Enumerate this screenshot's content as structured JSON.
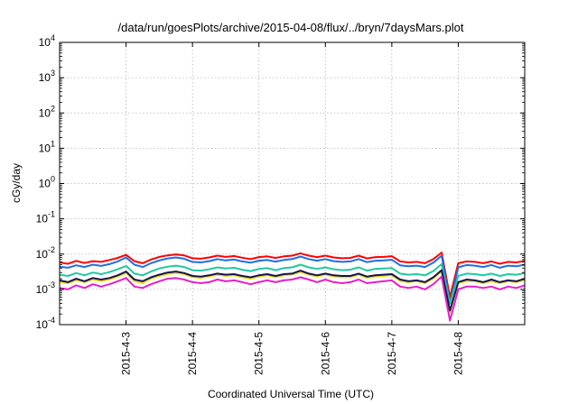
{
  "chart_data": {
    "type": "line",
    "title": "/data/run/goesPlots/archive/2015-04-08/flux/../bryn/7daysMars.plot",
    "xlabel": "Coordinated Universal Time (UTC)",
    "ylabel": "cGy/day",
    "yscale": "log",
    "ylim": [
      0.0001,
      10000
    ],
    "xlim": [
      "2015-04-02T00:00",
      "2015-04-09T00:00"
    ],
    "y_ticks": [
      {
        "value": 0.0001,
        "mant": "10",
        "exp": "-4"
      },
      {
        "value": 0.001,
        "mant": "10",
        "exp": "-3"
      },
      {
        "value": 0.01,
        "mant": "10",
        "exp": "-2"
      },
      {
        "value": 0.1,
        "mant": "10",
        "exp": "-1"
      },
      {
        "value": 1,
        "mant": "10",
        "exp": "0"
      },
      {
        "value": 10,
        "mant": "10",
        "exp": "1"
      },
      {
        "value": 100,
        "mant": "10",
        "exp": "2"
      },
      {
        "value": 1000,
        "mant": "10",
        "exp": "3"
      },
      {
        "value": 10000,
        "mant": "10",
        "exp": "4"
      }
    ],
    "x_ticks": [
      {
        "value": "2015-04-03T00:00",
        "label": "2015-4-3"
      },
      {
        "value": "2015-04-04T00:00",
        "label": "2015-4-4"
      },
      {
        "value": "2015-04-05T00:00",
        "label": "2015-4-5"
      },
      {
        "value": "2015-04-06T00:00",
        "label": "2015-4-6"
      },
      {
        "value": "2015-04-07T00:00",
        "label": "2015-4-7"
      },
      {
        "value": "2015-04-08T00:00",
        "label": "2015-4-8"
      }
    ],
    "grid": true,
    "x": [
      "2015-04-02T00:00",
      "2015-04-02T03:00",
      "2015-04-02T06:00",
      "2015-04-02T09:00",
      "2015-04-02T12:00",
      "2015-04-02T15:00",
      "2015-04-02T18:00",
      "2015-04-02T21:00",
      "2015-04-03T00:00",
      "2015-04-03T03:00",
      "2015-04-03T06:00",
      "2015-04-03T09:00",
      "2015-04-03T12:00",
      "2015-04-03T15:00",
      "2015-04-03T18:00",
      "2015-04-03T21:00",
      "2015-04-04T00:00",
      "2015-04-04T03:00",
      "2015-04-04T06:00",
      "2015-04-04T09:00",
      "2015-04-04T12:00",
      "2015-04-04T15:00",
      "2015-04-04T18:00",
      "2015-04-04T21:00",
      "2015-04-05T00:00",
      "2015-04-05T03:00",
      "2015-04-05T06:00",
      "2015-04-05T09:00",
      "2015-04-05T12:00",
      "2015-04-05T15:00",
      "2015-04-05T18:00",
      "2015-04-05T21:00",
      "2015-04-06T00:00",
      "2015-04-06T03:00",
      "2015-04-06T06:00",
      "2015-04-06T09:00",
      "2015-04-06T12:00",
      "2015-04-06T15:00",
      "2015-04-06T18:00",
      "2015-04-06T21:00",
      "2015-04-07T00:00",
      "2015-04-07T03:00",
      "2015-04-07T06:00",
      "2015-04-07T09:00",
      "2015-04-07T12:00",
      "2015-04-07T15:00",
      "2015-04-07T18:00",
      "2015-04-07T21:00",
      "2015-04-08T00:00",
      "2015-04-08T03:00",
      "2015-04-08T06:00",
      "2015-04-08T09:00",
      "2015-04-08T12:00",
      "2015-04-08T15:00",
      "2015-04-08T18:00",
      "2015-04-08T21:00",
      "2015-04-09T00:00"
    ],
    "series": [
      {
        "color": "#ff0000",
        "values": [
          0.0058,
          0.0053,
          0.0064,
          0.0056,
          0.0063,
          0.006,
          0.0068,
          0.0078,
          0.0095,
          0.0063,
          0.0055,
          0.007,
          0.0083,
          0.0092,
          0.0098,
          0.0092,
          0.0076,
          0.0074,
          0.008,
          0.009,
          0.0083,
          0.0088,
          0.0079,
          0.0072,
          0.0082,
          0.0086,
          0.0078,
          0.0086,
          0.009,
          0.0105,
          0.009,
          0.0082,
          0.009,
          0.008,
          0.0076,
          0.0078,
          0.009,
          0.0075,
          0.0082,
          0.0083,
          0.0087,
          0.0062,
          0.0058,
          0.006,
          0.0055,
          0.0072,
          0.011,
          0.0006,
          0.0055,
          0.0062,
          0.006,
          0.0055,
          0.0062,
          0.0053,
          0.006,
          0.0058,
          0.0064
        ]
      },
      {
        "color": "#1e6ee6",
        "values": [
          0.0044,
          0.0041,
          0.0048,
          0.0043,
          0.005,
          0.0046,
          0.0052,
          0.0062,
          0.008,
          0.005,
          0.0043,
          0.0055,
          0.0066,
          0.0075,
          0.008,
          0.0074,
          0.006,
          0.0058,
          0.0063,
          0.0072,
          0.0066,
          0.007,
          0.0062,
          0.0057,
          0.0065,
          0.0068,
          0.0061,
          0.0068,
          0.0072,
          0.0085,
          0.0072,
          0.0065,
          0.0072,
          0.0063,
          0.006,
          0.0062,
          0.0072,
          0.0059,
          0.0065,
          0.0066,
          0.0069,
          0.0048,
          0.0045,
          0.0047,
          0.0043,
          0.0057,
          0.009,
          0.0004,
          0.0042,
          0.0049,
          0.0047,
          0.0043,
          0.0049,
          0.0041,
          0.0047,
          0.0045,
          0.005
        ]
      },
      {
        "color": "#20c8a0",
        "values": [
          0.0026,
          0.0024,
          0.0029,
          0.0025,
          0.003,
          0.0027,
          0.0031,
          0.0037,
          0.0046,
          0.0028,
          0.0025,
          0.0032,
          0.0039,
          0.0044,
          0.0047,
          0.0043,
          0.0035,
          0.0034,
          0.0037,
          0.0042,
          0.0039,
          0.0041,
          0.0036,
          0.0033,
          0.0038,
          0.004,
          0.0035,
          0.004,
          0.0042,
          0.005,
          0.0042,
          0.0038,
          0.0042,
          0.0037,
          0.0035,
          0.0036,
          0.0042,
          0.0034,
          0.0038,
          0.0039,
          0.004,
          0.0028,
          0.0026,
          0.0027,
          0.0025,
          0.0033,
          0.0052,
          0.0004,
          0.0024,
          0.0028,
          0.0027,
          0.0025,
          0.0028,
          0.0024,
          0.0027,
          0.0026,
          0.0029
        ]
      },
      {
        "color": "#f0dc28",
        "values": [
          0.0016,
          0.0015,
          0.0018,
          0.0016,
          0.0019,
          0.0017,
          0.0019,
          0.0023,
          0.0029,
          0.0017,
          0.0015,
          0.002,
          0.0024,
          0.0027,
          0.0029,
          0.0027,
          0.0022,
          0.0021,
          0.0023,
          0.0026,
          0.0024,
          0.0025,
          0.0022,
          0.002,
          0.0023,
          0.0025,
          0.0022,
          0.0025,
          0.0026,
          0.0031,
          0.0026,
          0.0023,
          0.0026,
          0.0023,
          0.0022,
          0.0022,
          0.0026,
          0.0021,
          0.0023,
          0.0024,
          0.0025,
          0.0017,
          0.0016,
          0.0017,
          0.0015,
          0.002,
          0.0032,
          0.00022,
          0.0015,
          0.0017,
          0.0017,
          0.0015,
          0.0017,
          0.0015,
          0.0017,
          0.0016,
          0.0018
        ]
      },
      {
        "color": "#141450",
        "values": [
          0.0018,
          0.0016,
          0.002,
          0.0017,
          0.0021,
          0.0019,
          0.0021,
          0.0025,
          0.0032,
          0.0019,
          0.0017,
          0.0022,
          0.0026,
          0.003,
          0.0032,
          0.0029,
          0.0024,
          0.0023,
          0.0025,
          0.0028,
          0.0026,
          0.0027,
          0.0024,
          0.0022,
          0.0025,
          0.0027,
          0.0024,
          0.0027,
          0.0028,
          0.0034,
          0.0028,
          0.0025,
          0.0028,
          0.0025,
          0.0024,
          0.0024,
          0.0028,
          0.0023,
          0.0025,
          0.0026,
          0.0027,
          0.0019,
          0.0017,
          0.0018,
          0.0016,
          0.0022,
          0.0035,
          0.00025,
          0.0016,
          0.0019,
          0.0018,
          0.0016,
          0.0019,
          0.0016,
          0.0018,
          0.0017,
          0.002
        ]
      },
      {
        "color": "#e61ec8",
        "values": [
          0.0011,
          0.001,
          0.0013,
          0.0011,
          0.0014,
          0.0012,
          0.0014,
          0.0017,
          0.0021,
          0.0012,
          0.0011,
          0.0014,
          0.0017,
          0.002,
          0.0021,
          0.0019,
          0.0016,
          0.0015,
          0.0016,
          0.0019,
          0.0017,
          0.0018,
          0.0016,
          0.0014,
          0.0016,
          0.0018,
          0.0016,
          0.0018,
          0.0019,
          0.0022,
          0.0019,
          0.0016,
          0.0019,
          0.0016,
          0.0015,
          0.0016,
          0.0019,
          0.0015,
          0.0016,
          0.0017,
          0.0018,
          0.0012,
          0.0011,
          0.0012,
          0.001,
          0.0014,
          0.0023,
          0.00013,
          0.001,
          0.0012,
          0.0012,
          0.0011,
          0.0012,
          0.001,
          0.0012,
          0.0011,
          0.0013
        ]
      }
    ]
  }
}
